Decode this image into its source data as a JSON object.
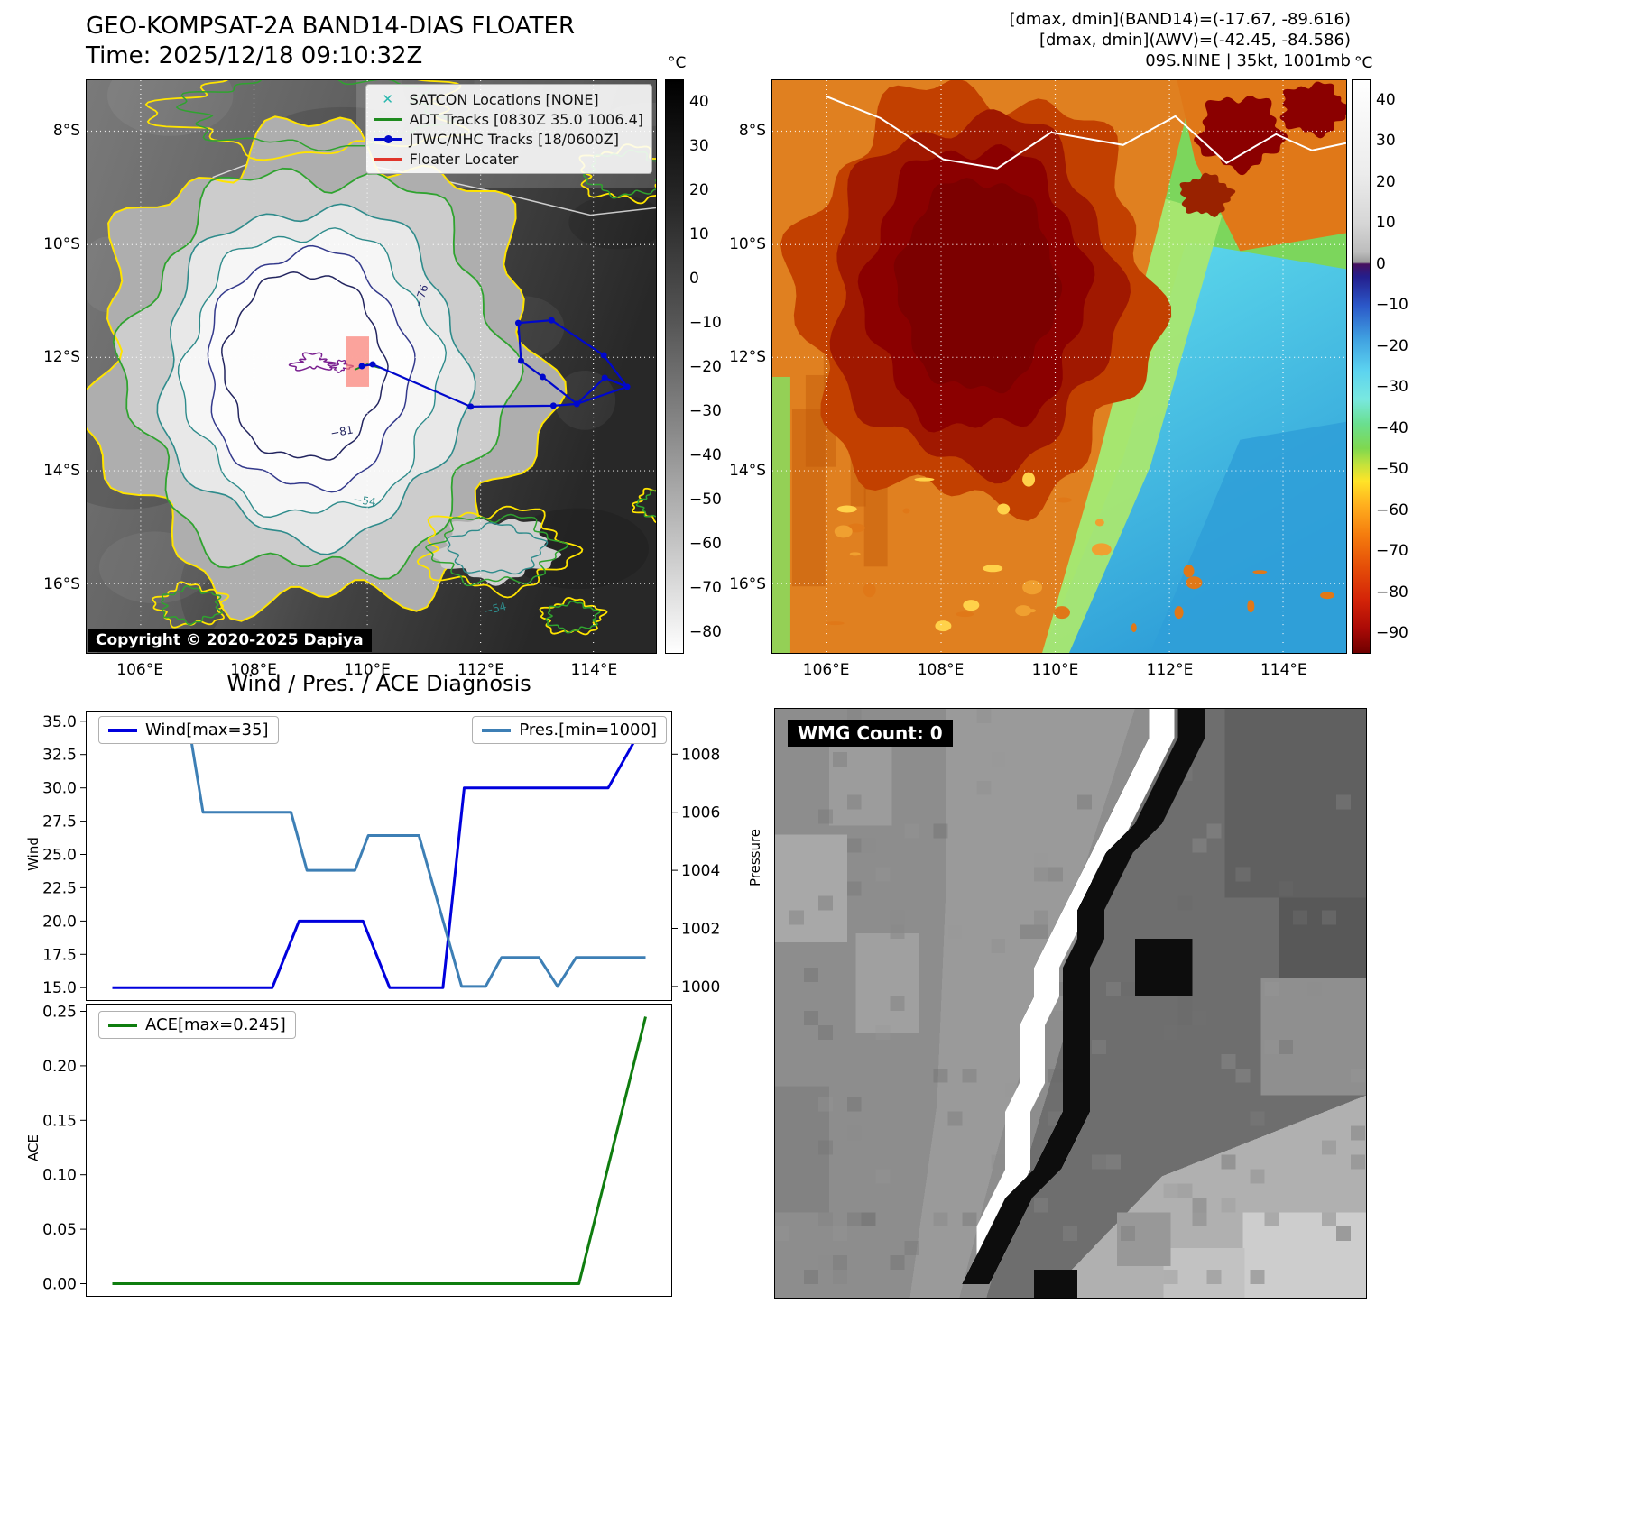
{
  "panel_tl": {
    "title": "GEO-KOMPSAT-2A BAND14-DIAS FLOATER",
    "subtitle": "Time: 2025/12/18 09:10:32Z",
    "legend_items": [
      {
        "label": "SATCON Locations [NONE]",
        "marker": "x-marker",
        "color": "#2ab8ae"
      },
      {
        "label": "ADT Tracks [0830Z 35.0 1006.4]",
        "marker": "line",
        "color": "#1f8b1f"
      },
      {
        "label": "JTWC/NHC Tracks [18/0600Z]",
        "marker": "line-dot",
        "color": "#0008cc"
      },
      {
        "label": "Floater Locater",
        "marker": "line",
        "color": "#e0352b"
      }
    ],
    "copyright": "Copyright © 2020-2025 Dapiya",
    "contour_labels": [
      {
        "text": "−76"
      },
      {
        "text": "−81"
      },
      {
        "text": "−54"
      },
      {
        "text": "−54"
      }
    ],
    "lat_ticks": [
      "8°S",
      "10°S",
      "12°S",
      "14°S",
      "16°S"
    ],
    "lon_ticks": [
      "106°E",
      "108°E",
      "110°E",
      "112°E",
      "114°E"
    ],
    "colorbar": {
      "unit": "°C",
      "vmin": -85,
      "vmax": 45,
      "tick_values": [
        40,
        30,
        20,
        10,
        0,
        -10,
        -20,
        -30,
        -40,
        -50,
        -60,
        -70,
        -80
      ],
      "tick_labels": [
        "40",
        "30",
        "20",
        "10",
        "0",
        "−10",
        "−20",
        "−30",
        "−40",
        "−50",
        "−60",
        "−70",
        "−80"
      ]
    }
  },
  "panel_tr": {
    "annotations": [
      "[dmax, dmin](BAND14)=(-17.67, -89.616)",
      "[dmax, dmin](AWV)=(-42.45, -84.586)",
      "09S.NINE | 35kt, 1001mb"
    ],
    "lat_ticks": [
      "8°S",
      "10°S",
      "12°S",
      "14°S",
      "16°S"
    ],
    "lon_ticks": [
      "106°E",
      "108°E",
      "110°E",
      "112°E",
      "114°E"
    ],
    "colorbar": {
      "unit": "°C",
      "vmin": -95,
      "vmax": 45,
      "tick_values": [
        40,
        30,
        20,
        10,
        0,
        -10,
        -20,
        -30,
        -40,
        -50,
        -60,
        -70,
        -80,
        -90
      ],
      "tick_labels": [
        "40",
        "30",
        "20",
        "10",
        "0",
        "−10",
        "−20",
        "−30",
        "−40",
        "−50",
        "−60",
        "−70",
        "−80",
        "−90"
      ]
    }
  },
  "panel_bl": {
    "title": "Wind / Pres. / ACE Diagnosis"
  },
  "panel_br": {
    "wmg_label": "WMG Count: 0"
  },
  "chart_data": [
    {
      "type": "line",
      "title": "Wind / Pres. / ACE Diagnosis",
      "xlim": [
        0,
        1
      ],
      "grid": false,
      "legend_position": "top-left and top-right",
      "series": [
        {
          "name": "Wind[max=35]",
          "axis": "wind",
          "color": "#0000dd",
          "x": [
            0,
            0.3,
            0.35,
            0.47,
            0.52,
            0.62,
            0.66,
            0.93,
            1.0
          ],
          "y": [
            15,
            15,
            20,
            20,
            15,
            15,
            30,
            30,
            35
          ]
        },
        {
          "name": "Pres.[min=1000]",
          "axis": "pressure",
          "color": "#3d7fb5",
          "x": [
            0,
            0.145,
            0.17,
            0.335,
            0.365,
            0.455,
            0.48,
            0.575,
            0.655,
            0.7,
            0.73,
            0.8,
            0.835,
            0.87,
            1.0
          ],
          "y": [
            1008.8,
            1008.8,
            1006,
            1006,
            1004,
            1004,
            1005.2,
            1005.2,
            1000,
            1000,
            1001,
            1001,
            1000,
            1001,
            1001
          ]
        }
      ],
      "wind_axis": {
        "label": "Wind",
        "ylim": [
          14.0,
          35.8
        ],
        "tick_values": [
          15,
          17.5,
          20,
          22.5,
          25,
          27.5,
          30,
          32.5,
          35
        ],
        "tick_labels": [
          "15.0",
          "17.5",
          "20.0",
          "22.5",
          "25.0",
          "27.5",
          "30.0",
          "32.5",
          "35.0"
        ]
      },
      "pressure_axis": {
        "label": "Pressure",
        "ylim": [
          999.5,
          1009.5
        ],
        "tick_values": [
          1000,
          1002,
          1004,
          1006,
          1008
        ],
        "tick_labels": [
          "1000",
          "1002",
          "1004",
          "1006",
          "1008"
        ]
      }
    },
    {
      "type": "line",
      "title": "",
      "xlim": [
        0,
        1
      ],
      "grid": false,
      "legend_position": "top-left",
      "series": [
        {
          "name": "ACE[max=0.245]",
          "axis": "ace",
          "color": "#0f7d0f",
          "x": [
            0,
            0.875,
            1.0
          ],
          "y": [
            0.0,
            0.0,
            0.245
          ]
        }
      ],
      "ace_axis": {
        "label": "ACE",
        "ylim": [
          -0.012,
          0.257
        ],
        "tick_values": [
          0,
          0.05,
          0.1,
          0.15,
          0.2,
          0.25
        ],
        "tick_labels": [
          "0.00",
          "0.05",
          "0.10",
          "0.15",
          "0.20",
          "0.25"
        ]
      }
    }
  ]
}
